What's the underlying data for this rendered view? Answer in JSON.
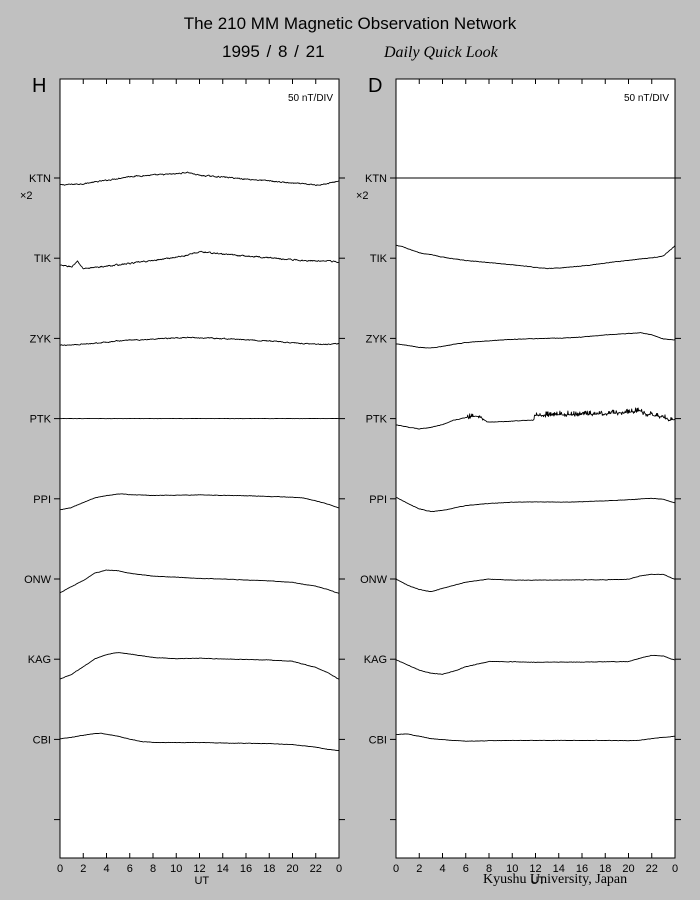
{
  "header": {
    "title": "The 210 MM Magnetic Observation Network",
    "date": "1995  /   8  /  21",
    "subtitle": "Daily Quick Look"
  },
  "footer": {
    "credit": "Kyushu University, Japan"
  },
  "chart_data": [
    {
      "type": "line",
      "panel": "H",
      "scale_label": "50 nT/DIV",
      "xlabel": "UT",
      "xlim": [
        0,
        24
      ],
      "x_ticks": [
        "0",
        "2",
        "4",
        "6",
        "8",
        "10",
        "12",
        "14",
        "16",
        "18",
        "20",
        "22",
        "0"
      ],
      "stations": [
        "KTN",
        "TIK",
        "ZYK",
        "PTK",
        "PPI",
        "ONW",
        "KAG",
        "CBI"
      ],
      "station_note": "×2",
      "units": "nT",
      "div_nT": 50,
      "series": [
        {
          "name": "KTN",
          "x": [
            0,
            2,
            4,
            6,
            8,
            10,
            11,
            12,
            14,
            16,
            18,
            20,
            21,
            22,
            23,
            24
          ],
          "values": [
            -27,
            -22,
            -9,
            6,
            11,
            16,
            22,
            10,
            4,
            -4,
            -11,
            -20,
            -23,
            -27,
            -22,
            -11
          ],
          "noise": 3.5
        },
        {
          "name": "TIK",
          "x": [
            0,
            1,
            1.5,
            2,
            4,
            6,
            8,
            10,
            11,
            12,
            14,
            16,
            18,
            20,
            22,
            23,
            24
          ],
          "values": [
            -28,
            -33,
            -13,
            -40,
            -31,
            -20,
            -9,
            4,
            12,
            25,
            16,
            8,
            2,
            -6,
            -11,
            -8,
            -17
          ],
          "noise": 4
        },
        {
          "name": "ZYK",
          "x": [
            0,
            2,
            4,
            6,
            8,
            10,
            11,
            12,
            14,
            16,
            18,
            20,
            22,
            23,
            24
          ],
          "values": [
            -27,
            -22,
            -14,
            -6,
            -4,
            2,
            4,
            2,
            -1,
            -5,
            -10,
            -17,
            -22,
            -23,
            -20
          ],
          "noise": 3
        },
        {
          "name": "PTK",
          "x": [
            0,
            24
          ],
          "values": [
            0,
            0
          ],
          "noise": 0.5
        },
        {
          "name": "PPI",
          "x": [
            0,
            1,
            2,
            3,
            4,
            5,
            6,
            8,
            10,
            12,
            14,
            16,
            18,
            20,
            21,
            22,
            23,
            24
          ],
          "values": [
            -42,
            -34,
            -14,
            4,
            12,
            19,
            16,
            13,
            14,
            15,
            13,
            12,
            9,
            6,
            3,
            -8,
            -20,
            -36
          ],
          "noise": 1.2
        },
        {
          "name": "ONW",
          "x": [
            0,
            1,
            2,
            3,
            4,
            5,
            6,
            8,
            10,
            12,
            14,
            16,
            18,
            20,
            22,
            23,
            24
          ],
          "values": [
            -53,
            -29,
            -6,
            23,
            34,
            32,
            22,
            11,
            7,
            2,
            0,
            -4,
            -7,
            -13,
            -28,
            -40,
            -56
          ],
          "noise": 1.2
        },
        {
          "name": "KAG",
          "x": [
            0,
            1,
            2,
            3,
            4,
            5,
            6,
            8,
            10,
            12,
            14,
            16,
            18,
            20,
            22,
            23,
            24
          ],
          "values": [
            -77,
            -58,
            -29,
            1,
            18,
            26,
            20,
            7,
            2,
            4,
            1,
            -1,
            -3,
            -8,
            -32,
            -51,
            -78
          ],
          "noise": 1.2
        },
        {
          "name": "CBI",
          "x": [
            0,
            1,
            2,
            3,
            3.5,
            4,
            5,
            6,
            7,
            8,
            10,
            12,
            14,
            16,
            18,
            20,
            22,
            23,
            24
          ],
          "values": [
            2,
            8,
            16,
            22,
            24,
            20,
            12,
            1,
            -8,
            -12,
            -12,
            -12,
            -14,
            -15,
            -16,
            -20,
            -30,
            -38,
            -43
          ],
          "noise": 1.2
        }
      ]
    },
    {
      "type": "line",
      "panel": "D",
      "scale_label": "50 nT/DIV",
      "xlabel": "UT",
      "xlim": [
        0,
        24
      ],
      "x_ticks": [
        "0",
        "2",
        "4",
        "6",
        "8",
        "10",
        "12",
        "14",
        "16",
        "18",
        "20",
        "22",
        "0"
      ],
      "stations": [
        "KTN",
        "TIK",
        "ZYK",
        "PTK",
        "PPI",
        "ONW",
        "KAG",
        "CBI"
      ],
      "station_note": "×2",
      "units": "nT",
      "div_nT": 50,
      "series": [
        {
          "name": "KTN",
          "x": [
            0,
            24
          ],
          "values": [
            0,
            0
          ],
          "noise": 0
        },
        {
          "name": "TIK",
          "x": [
            0,
            0.5,
            1,
            1.5,
            2,
            3,
            4,
            6,
            8,
            10,
            11,
            12,
            13,
            14,
            16,
            18,
            20,
            22,
            23,
            23.5,
            24
          ],
          "values": [
            50,
            46,
            37,
            29,
            21,
            13,
            4,
            -9,
            -17,
            -25,
            -30,
            -35,
            -40,
            -38,
            -30,
            -19,
            -8,
            2,
            8,
            28,
            48
          ],
          "noise": 1.6
        },
        {
          "name": "ZYK",
          "x": [
            0,
            1,
            2,
            3,
            4,
            6,
            8,
            10,
            12,
            14,
            16,
            18,
            20,
            21,
            22,
            23,
            24
          ],
          "values": [
            -21,
            -27,
            -34,
            -37,
            -30,
            -16,
            -9,
            -4,
            -1,
            1,
            5,
            13,
            19,
            22,
            14,
            -2,
            -6
          ],
          "noise": 1.4
        },
        {
          "name": "PTK",
          "x": [
            0,
            1,
            2,
            3,
            4,
            5,
            5.8,
            6.5,
            7.2,
            7.8,
            8,
            10,
            11,
            11.8,
            12,
            14,
            16,
            18,
            20,
            21,
            21.5,
            22,
            23,
            23.5,
            24
          ],
          "values": [
            -24,
            -33,
            -40,
            -34,
            -23,
            -6,
            2,
            8,
            9,
            -12,
            -13,
            -10,
            -7,
            -6,
            12,
            14,
            15,
            18,
            24,
            30,
            16,
            13,
            4,
            -6,
            -4
          ],
          "noise": 1.5,
          "spikes": [
            [
              6,
              6.6,
              12,
              20
            ],
            [
              7,
              7.6,
              10,
              18
            ],
            [
              11.8,
              23.8,
              9,
              22
            ]
          ]
        },
        {
          "name": "PPI",
          "x": [
            0,
            1,
            2,
            3,
            4,
            6,
            8,
            10,
            12,
            14,
            16,
            18,
            20,
            22,
            23,
            24
          ],
          "values": [
            6,
            -18,
            -39,
            -49,
            -45,
            -26,
            -18,
            -13,
            -12,
            -13,
            -11,
            -8,
            -4,
            2,
            -2,
            -15
          ],
          "noise": 1.2
        },
        {
          "name": "ONW",
          "x": [
            0,
            1,
            2,
            3,
            4,
            6,
            8,
            10,
            12,
            14,
            16,
            18,
            20,
            21,
            22,
            23,
            24
          ],
          "values": [
            0,
            -24,
            -40,
            -49,
            -36,
            -12,
            0,
            -4,
            -5,
            -4,
            -3,
            -3,
            -1,
            12,
            18,
            18,
            -2
          ],
          "noise": 1.2
        },
        {
          "name": "KAG",
          "x": [
            0,
            1,
            2,
            3,
            4,
            5,
            6,
            8,
            10,
            12,
            14,
            16,
            18,
            20,
            21,
            22,
            23,
            24
          ],
          "values": [
            -2,
            -22,
            -42,
            -54,
            -58,
            -46,
            -29,
            -9,
            -10,
            -12,
            -11,
            -11,
            -10,
            -9,
            4,
            15,
            12,
            -4
          ],
          "noise": 1.2
        },
        {
          "name": "CBI",
          "x": [
            0,
            1,
            2,
            3,
            4,
            5,
            6,
            8,
            10,
            12,
            14,
            16,
            18,
            20,
            21,
            22,
            23,
            24
          ],
          "values": [
            19,
            21,
            12,
            3,
            -1,
            -4,
            -7,
            -5,
            -4,
            -4,
            -4,
            -4,
            -4,
            -5,
            -3,
            3,
            8,
            12
          ],
          "noise": 1.0
        }
      ]
    }
  ]
}
